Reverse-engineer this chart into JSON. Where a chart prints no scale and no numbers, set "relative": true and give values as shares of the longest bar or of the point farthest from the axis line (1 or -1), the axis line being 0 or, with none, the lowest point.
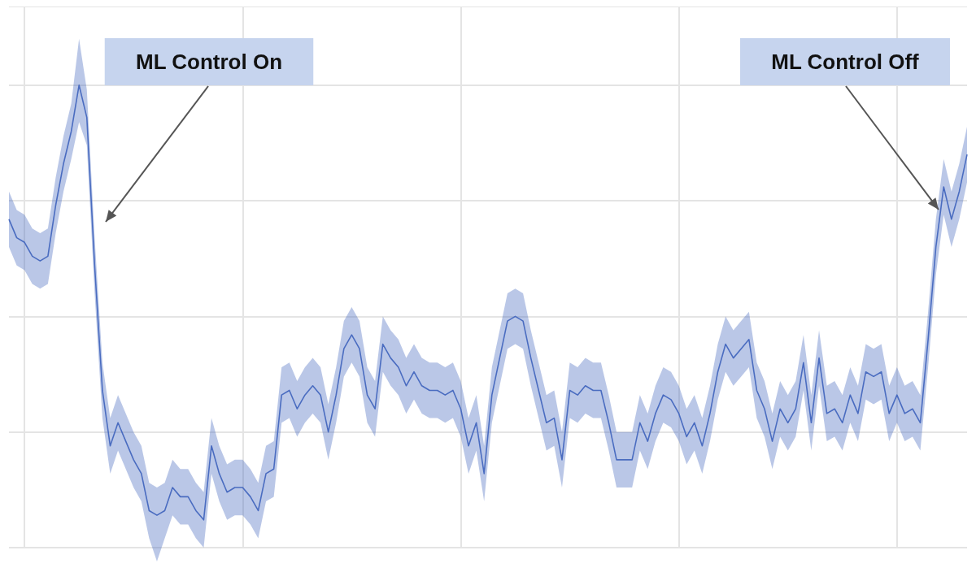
{
  "chart_data": {
    "type": "line",
    "relative": true,
    "grid": true,
    "marker": "none",
    "line_style": "solid",
    "annotations": [
      "ML Control On",
      "ML Control Off"
    ],
    "categories": [
      null,
      null,
      null,
      null,
      null,
      null,
      null,
      null,
      null,
      null,
      null,
      null,
      null,
      null,
      null,
      null,
      null,
      null,
      null,
      null,
      null,
      null,
      null,
      null,
      null,
      null,
      null,
      null,
      null,
      null,
      null,
      null,
      null,
      null,
      null,
      null,
      null,
      null,
      null,
      null,
      null,
      null,
      null,
      null,
      null,
      null,
      null,
      null,
      null,
      null,
      null,
      null,
      null,
      null,
      null,
      null,
      null,
      null,
      null,
      null,
      null,
      null,
      null,
      null,
      null,
      null,
      null,
      null,
      null,
      null,
      null,
      null,
      null,
      null,
      null,
      null,
      null,
      null,
      null,
      null,
      null,
      null,
      null,
      null,
      null,
      null,
      null,
      null,
      null,
      null,
      null,
      null,
      null,
      null,
      null,
      null,
      null,
      null,
      null,
      null,
      null,
      null,
      null,
      null,
      null,
      null,
      null,
      null,
      null,
      null,
      null,
      null,
      null,
      null,
      null,
      null,
      null,
      null,
      null,
      null,
      null,
      null,
      null,
      null
    ],
    "series": [
      {
        "color": "#4a6cc0",
        "values": [
          0.71,
          0.67,
          0.66,
          0.63,
          0.62,
          0.63,
          0.74,
          0.83,
          0.9,
          1.0,
          0.93,
          0.61,
          0.34,
          0.22,
          0.27,
          0.23,
          0.19,
          0.16,
          0.08,
          0.07,
          0.08,
          0.13,
          0.11,
          0.11,
          0.08,
          0.06,
          0.22,
          0.16,
          0.12,
          0.13,
          0.13,
          0.11,
          0.08,
          0.16,
          0.17,
          0.33,
          0.34,
          0.3,
          0.33,
          0.35,
          0.33,
          0.25,
          0.33,
          0.43,
          0.46,
          0.43,
          0.33,
          0.3,
          0.44,
          0.41,
          0.39,
          0.35,
          0.38,
          0.35,
          0.34,
          0.34,
          0.33,
          0.34,
          0.3,
          0.22,
          0.27,
          0.16,
          0.33,
          0.41,
          0.49,
          0.5,
          0.49,
          0.41,
          0.34,
          0.27,
          0.28,
          0.19,
          0.34,
          0.33,
          0.35,
          0.34,
          0.34,
          0.27,
          0.19,
          0.19,
          0.19,
          0.27,
          0.23,
          0.29,
          0.33,
          0.32,
          0.29,
          0.24,
          0.27,
          0.22,
          0.29,
          0.38,
          0.44,
          0.41,
          0.43,
          0.45,
          0.34,
          0.3,
          0.23,
          0.3,
          0.27,
          0.3,
          0.4,
          0.27,
          0.41,
          0.29,
          0.3,
          0.27,
          0.33,
          0.29,
          0.38,
          0.37,
          0.38,
          0.29,
          0.33,
          0.29,
          0.3,
          0.27,
          0.45,
          0.65,
          0.78,
          0.71,
          0.77,
          0.85
        ],
        "lower": [
          0.65,
          0.61,
          0.6,
          0.57,
          0.56,
          0.57,
          0.68,
          0.77,
          0.84,
          0.92,
          0.87,
          0.55,
          0.28,
          0.16,
          0.21,
          0.17,
          0.13,
          0.1,
          0.02,
          -0.03,
          0.02,
          0.07,
          0.05,
          0.05,
          0.02,
          0,
          0.16,
          0.1,
          0.06,
          0.07,
          0.07,
          0.05,
          0.02,
          0.1,
          0.11,
          0.27,
          0.28,
          0.24,
          0.27,
          0.29,
          0.27,
          0.19,
          0.27,
          0.37,
          0.4,
          0.37,
          0.27,
          0.24,
          0.38,
          0.35,
          0.33,
          0.29,
          0.32,
          0.29,
          0.28,
          0.28,
          0.27,
          0.28,
          0.24,
          0.16,
          0.21,
          0.1,
          0.27,
          0.35,
          0.43,
          0.44,
          0.43,
          0.35,
          0.28,
          0.21,
          0.22,
          0.13,
          0.28,
          0.27,
          0.29,
          0.28,
          0.28,
          0.21,
          0.13,
          0.13,
          0.13,
          0.21,
          0.17,
          0.23,
          0.27,
          0.26,
          0.23,
          0.18,
          0.21,
          0.16,
          0.23,
          0.32,
          0.38,
          0.35,
          0.37,
          0.39,
          0.28,
          0.24,
          0.17,
          0.24,
          0.21,
          0.24,
          0.34,
          0.21,
          0.35,
          0.23,
          0.24,
          0.21,
          0.27,
          0.23,
          0.32,
          0.31,
          0.32,
          0.23,
          0.27,
          0.23,
          0.24,
          0.21,
          0.39,
          0.59,
          0.72,
          0.65,
          0.71,
          0.79
        ],
        "upper": [
          0.77,
          0.73,
          0.72,
          0.69,
          0.68,
          0.69,
          0.8,
          0.89,
          0.96,
          1.1,
          0.99,
          0.67,
          0.4,
          0.28,
          0.33,
          0.29,
          0.25,
          0.22,
          0.14,
          0.13,
          0.14,
          0.19,
          0.17,
          0.17,
          0.14,
          0.12,
          0.28,
          0.22,
          0.18,
          0.19,
          0.19,
          0.17,
          0.14,
          0.22,
          0.23,
          0.39,
          0.4,
          0.36,
          0.39,
          0.41,
          0.39,
          0.31,
          0.39,
          0.49,
          0.52,
          0.49,
          0.39,
          0.36,
          0.5,
          0.47,
          0.45,
          0.41,
          0.44,
          0.41,
          0.4,
          0.4,
          0.39,
          0.4,
          0.36,
          0.28,
          0.33,
          0.22,
          0.39,
          0.47,
          0.55,
          0.56,
          0.55,
          0.47,
          0.4,
          0.33,
          0.34,
          0.25,
          0.4,
          0.39,
          0.41,
          0.4,
          0.4,
          0.33,
          0.25,
          0.25,
          0.25,
          0.33,
          0.29,
          0.35,
          0.39,
          0.38,
          0.35,
          0.3,
          0.33,
          0.28,
          0.35,
          0.44,
          0.5,
          0.47,
          0.49,
          0.51,
          0.4,
          0.36,
          0.29,
          0.36,
          0.33,
          0.36,
          0.46,
          0.33,
          0.47,
          0.35,
          0.36,
          0.33,
          0.39,
          0.35,
          0.44,
          0.43,
          0.44,
          0.35,
          0.39,
          0.35,
          0.36,
          0.33,
          0.51,
          0.71,
          0.84,
          0.77,
          0.83,
          0.91
        ]
      }
    ]
  }
}
